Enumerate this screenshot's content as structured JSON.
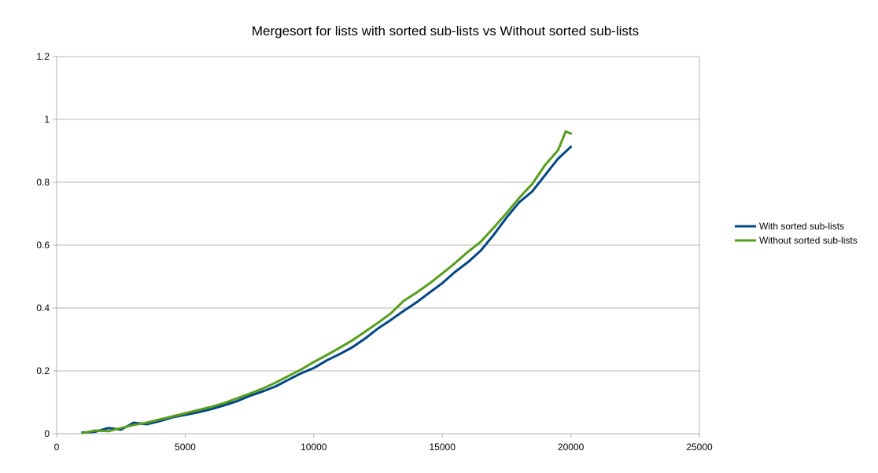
{
  "chart_data": {
    "type": "line",
    "title": "Mergesort for lists with sorted sub-lists vs Without sorted sub-lists",
    "xlabel": "",
    "ylabel": "",
    "xlim": [
      0,
      25000
    ],
    "ylim": [
      0,
      1.2
    ],
    "x_ticks": [
      0,
      5000,
      10000,
      15000,
      20000,
      25000
    ],
    "y_ticks": [
      0,
      0.2,
      0.4,
      0.6,
      0.8,
      1,
      1.2
    ],
    "x_tick_labels": [
      "0",
      "5000",
      "10000",
      "15000",
      "20000",
      "25000"
    ],
    "y_tick_labels": [
      "0",
      "0.2",
      "0.4",
      "0.6",
      "0.8",
      "1",
      "1.2"
    ],
    "grid": "horizontal",
    "legend_position": "right",
    "series": [
      {
        "name": "With sorted sub-lists",
        "color": "#004586",
        "x": [
          1000,
          1500,
          2000,
          2500,
          3000,
          3500,
          4000,
          4500,
          5000,
          5500,
          6000,
          6500,
          7000,
          7500,
          8000,
          8500,
          9000,
          9500,
          10000,
          10500,
          11000,
          11500,
          12000,
          12500,
          13000,
          13500,
          14000,
          14500,
          15000,
          15500,
          16000,
          16500,
          17000,
          17500,
          18000,
          18500,
          19000,
          19500,
          20000
        ],
        "y": [
          0.004,
          0.006,
          0.018,
          0.013,
          0.035,
          0.03,
          0.04,
          0.052,
          0.06,
          0.068,
          0.078,
          0.09,
          0.103,
          0.12,
          0.134,
          0.15,
          0.171,
          0.192,
          0.209,
          0.233,
          0.253,
          0.275,
          0.303,
          0.335,
          0.362,
          0.391,
          0.418,
          0.449,
          0.479,
          0.515,
          0.546,
          0.583,
          0.633,
          0.688,
          0.737,
          0.771,
          0.823,
          0.875,
          0.913
        ]
      },
      {
        "name": "Without sorted sub-lists",
        "color": "#579d1c",
        "x": [
          1000,
          1500,
          2000,
          2500,
          3000,
          3500,
          4000,
          4500,
          5000,
          5500,
          6000,
          6500,
          7000,
          7500,
          8000,
          8500,
          9000,
          9500,
          10000,
          10500,
          11000,
          11500,
          12000,
          12500,
          13000,
          13500,
          14000,
          14500,
          15000,
          15500,
          16000,
          16500,
          17000,
          17500,
          18000,
          18500,
          19000,
          19500,
          19800,
          20000
        ],
        "y": [
          0.002,
          0.01,
          0.008,
          0.018,
          0.028,
          0.035,
          0.045,
          0.055,
          0.065,
          0.075,
          0.085,
          0.097,
          0.112,
          0.127,
          0.143,
          0.162,
          0.183,
          0.204,
          0.228,
          0.25,
          0.273,
          0.297,
          0.325,
          0.353,
          0.383,
          0.423,
          0.449,
          0.478,
          0.51,
          0.543,
          0.579,
          0.611,
          0.656,
          0.702,
          0.751,
          0.795,
          0.855,
          0.902,
          0.962,
          0.955
        ]
      }
    ]
  }
}
